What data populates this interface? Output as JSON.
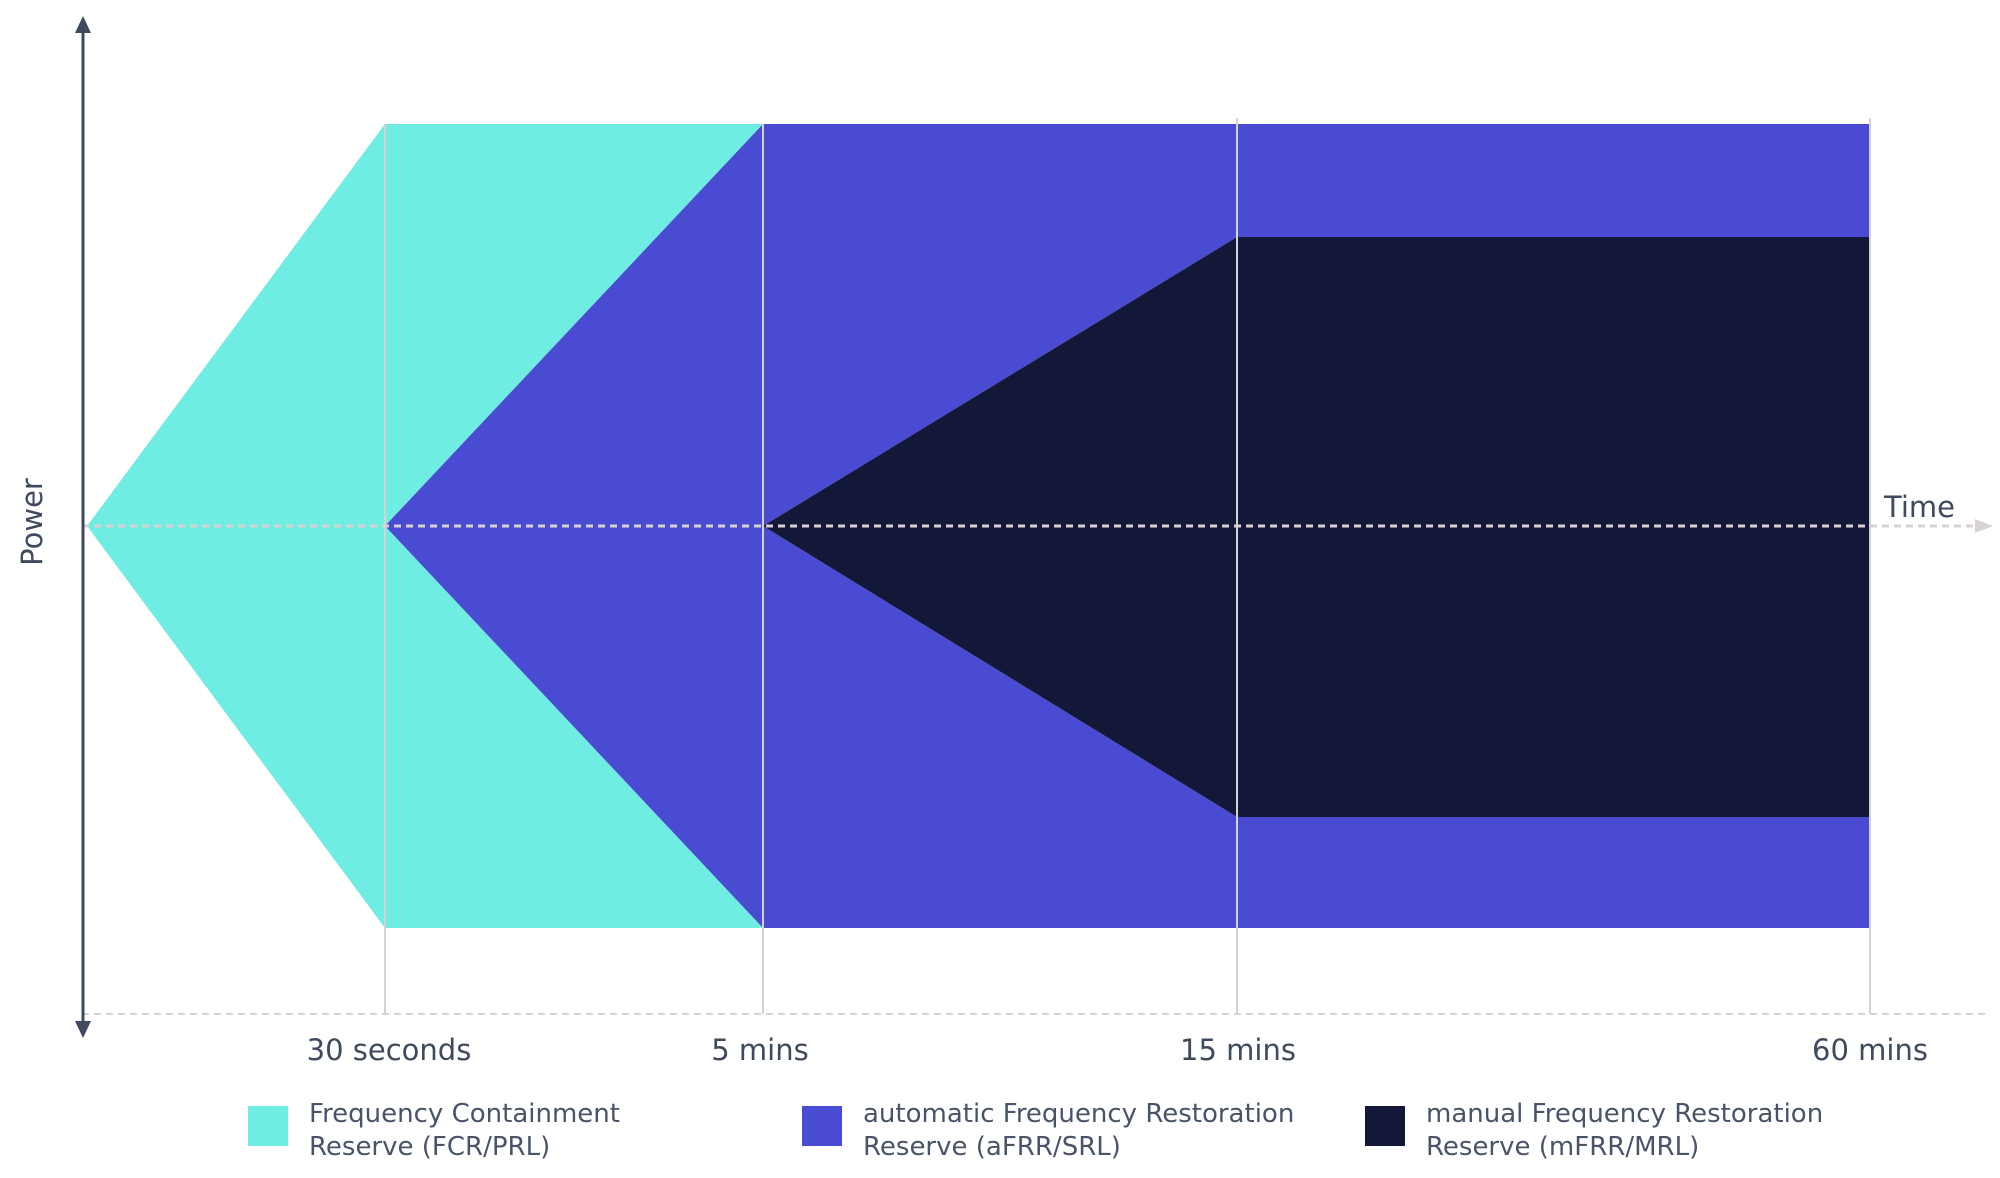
{
  "axes": {
    "y_label": "Power",
    "x_label": "Time"
  },
  "time_ticks": [
    "30 seconds",
    "5 mins",
    "15 mins",
    "60 mins"
  ],
  "legend": [
    {
      "id": "fcr",
      "line1": "Frequency Containment",
      "line2": "Reserve (FCR/PRL)",
      "color": "#6fede3"
    },
    {
      "id": "afrr",
      "line1": "automatic Frequency Restoration",
      "line2": "Reserve (aFRR/SRL)",
      "color": "#4a4bd3"
    },
    {
      "id": "mfrr",
      "line1": "manual Frequency Restoration",
      "line2": "Reserve (mFRR/MRL)",
      "color": "#141838"
    }
  ],
  "colors": {
    "axis": "#3f4a5e",
    "gridline": "#d3d3d3",
    "time_axis": "#d9d2d2"
  }
}
